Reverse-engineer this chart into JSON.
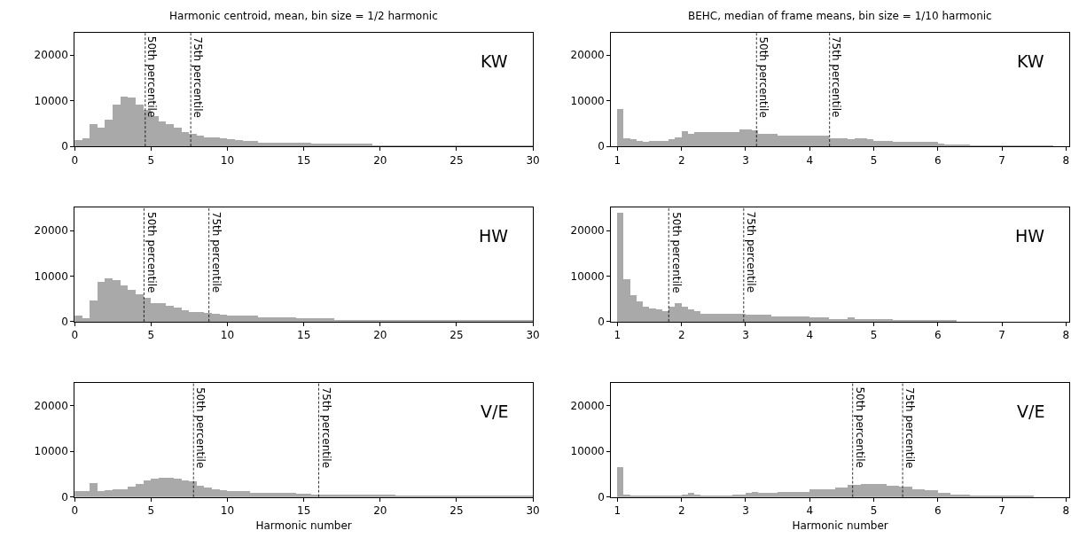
{
  "chart_data": [
    {
      "type": "histogram",
      "title": "Harmonic centroid, mean, bin size = 1/2 harmonic",
      "color": "#a9a9a9",
      "bins": [
        0,
        0.5,
        1,
        1.5,
        2,
        2.5,
        3,
        3.5,
        4,
        4.5,
        5,
        5.5,
        6,
        6.5,
        7,
        7.5,
        8,
        8.5,
        9,
        9.5,
        10,
        10.5,
        11,
        11.5,
        12,
        12.5,
        13,
        13.5,
        14,
        14.5,
        15,
        15.5,
        16,
        16.5,
        17,
        17.5,
        18,
        18.5,
        19,
        19.5,
        20,
        20.5,
        21,
        21.5,
        22,
        22.5,
        23,
        23.5,
        24,
        24.5,
        25,
        25.5,
        26,
        26.5,
        27,
        27.5,
        28,
        28.5,
        29,
        29.5,
        30
      ],
      "values": [
        1500,
        1800,
        4900,
        4200,
        6000,
        9300,
        11000,
        10800,
        9300,
        8100,
        6800,
        5500,
        4900,
        4200,
        3200,
        2900,
        2500,
        2100,
        2100,
        1800,
        1600,
        1400,
        1300,
        1200,
        900,
        900,
        900,
        900,
        900,
        900,
        900,
        600,
        600,
        600,
        600,
        600,
        600,
        600,
        600,
        150,
        150,
        150,
        150,
        150,
        150,
        150,
        150,
        150,
        150,
        150,
        150,
        150,
        150,
        150,
        150,
        150,
        150,
        150,
        150,
        150
      ],
      "xlim": [
        0,
        30
      ],
      "xticks": [
        0,
        5,
        10,
        15,
        20,
        25,
        30
      ],
      "ylim": [
        0,
        25000
      ],
      "yticks": [
        0,
        10000,
        20000
      ],
      "ref_lines": [
        {
          "axis": "x",
          "value": 4.62,
          "label": "50th percentile",
          "color": "#000000",
          "line_style": "dashed"
        },
        {
          "axis": "x",
          "value": 7.6,
          "label": "75th percentile",
          "color": "#000000",
          "line_style": "dashed"
        }
      ],
      "annotations": [
        "KW"
      ]
    },
    {
      "type": "histogram",
      "title": "BEHC, median of frame means, bin size = 1/10 harmonic",
      "color": "#a9a9a9",
      "bins": [
        1.0,
        1.1,
        1.2,
        1.3,
        1.4,
        1.5,
        1.6,
        1.7,
        1.8,
        1.9,
        2.0,
        2.1,
        2.2,
        2.3,
        2.4,
        2.5,
        2.6,
        2.7,
        2.8,
        2.9,
        3.0,
        3.1,
        3.2,
        3.3,
        3.4,
        3.5,
        3.6,
        3.7,
        3.8,
        3.9,
        4.0,
        4.1,
        4.2,
        4.3,
        4.4,
        4.5,
        4.6,
        4.7,
        4.8,
        4.9,
        5.0,
        5.1,
        5.2,
        5.3,
        5.4,
        5.5,
        5.6,
        5.7,
        5.8,
        5.9,
        6.0,
        6.1,
        6.2,
        6.3,
        6.4,
        6.5,
        6.6,
        6.7,
        6.8,
        6.9,
        7.0,
        7.1,
        7.2,
        7.3,
        7.4,
        7.5,
        7.6,
        7.7,
        7.8
      ],
      "values": [
        8200,
        1900,
        1600,
        1300,
        1100,
        1300,
        1300,
        1300,
        1600,
        2100,
        3400,
        2800,
        3200,
        3200,
        3200,
        3200,
        3200,
        3200,
        3200,
        3800,
        3800,
        3600,
        2800,
        2800,
        2800,
        2500,
        2500,
        2500,
        2500,
        2500,
        2500,
        2500,
        2500,
        1900,
        1900,
        1900,
        1600,
        1900,
        1900,
        1600,
        1300,
        1300,
        1300,
        1100,
        1100,
        1100,
        1100,
        1100,
        1100,
        1100,
        650,
        450,
        450,
        450,
        450,
        150,
        150,
        150,
        150,
        150,
        150,
        150,
        150,
        150,
        150,
        150,
        150,
        150
      ],
      "xlim": [
        0.9,
        8.05
      ],
      "xticks": [
        1,
        2,
        3,
        4,
        5,
        6,
        7,
        8
      ],
      "ylim": [
        0,
        25000
      ],
      "yticks": [
        0,
        10000,
        20000
      ],
      "ref_lines": [
        {
          "axis": "x",
          "value": 3.17,
          "label": "50th percentile",
          "color": "#000000",
          "line_style": "dashed"
        },
        {
          "axis": "x",
          "value": 4.31,
          "label": "75th percentile",
          "color": "#000000",
          "line_style": "dashed"
        }
      ],
      "annotations": [
        "KW"
      ]
    },
    {
      "type": "histogram",
      "color": "#a9a9a9",
      "bins": [
        0,
        0.5,
        1,
        1.5,
        2,
        2.5,
        3,
        3.5,
        4,
        4.5,
        5,
        5.5,
        6,
        6.5,
        7,
        7.5,
        8,
        8.5,
        9,
        9.5,
        10,
        10.5,
        11,
        11.5,
        12,
        12.5,
        13,
        13.5,
        14,
        14.5,
        15,
        15.5,
        16,
        16.5,
        17,
        17.5,
        18,
        18.5,
        19,
        19.5,
        20,
        20.5,
        21,
        21.5,
        22,
        22.5,
        23,
        23.5,
        24,
        24.5,
        25,
        25.5,
        26,
        26.5,
        27,
        27.5,
        28,
        28.5,
        29,
        29.5,
        30
      ],
      "values": [
        1300,
        650,
        4500,
        8600,
        9500,
        9000,
        7800,
        6900,
        6000,
        5200,
        3900,
        3900,
        3400,
        3100,
        2400,
        2100,
        2100,
        1900,
        1600,
        1500,
        1200,
        1200,
        1200,
        1200,
        900,
        900,
        900,
        900,
        900,
        600,
        600,
        600,
        600,
        600,
        200,
        200,
        200,
        200,
        200,
        200,
        200,
        200,
        200,
        200,
        200,
        200,
        200,
        200,
        200,
        200,
        200,
        200,
        200,
        200,
        200,
        200,
        200,
        200,
        200,
        200
      ],
      "xlim": [
        0,
        30
      ],
      "xticks": [
        0,
        5,
        10,
        15,
        20,
        25,
        30
      ],
      "ylim": [
        0,
        25000
      ],
      "yticks": [
        0,
        10000,
        20000
      ],
      "ref_lines": [
        {
          "axis": "x",
          "value": 4.54,
          "label": "50th percentile",
          "color": "#000000",
          "line_style": "dashed"
        },
        {
          "axis": "x",
          "value": 8.79,
          "label": "75th percentile",
          "color": "#000000",
          "line_style": "dashed"
        }
      ],
      "annotations": [
        "HW"
      ]
    },
    {
      "type": "histogram",
      "color": "#a9a9a9",
      "bins": [
        1.0,
        1.1,
        1.2,
        1.3,
        1.4,
        1.5,
        1.6,
        1.7,
        1.8,
        1.9,
        2.0,
        2.1,
        2.2,
        2.3,
        2.4,
        2.5,
        2.6,
        2.7,
        2.8,
        2.9,
        3.0,
        3.1,
        3.2,
        3.3,
        3.4,
        3.5,
        3.6,
        3.7,
        3.8,
        3.9,
        4.0,
        4.1,
        4.2,
        4.3,
        4.4,
        4.5,
        4.6,
        4.7,
        4.8,
        4.9,
        5.0,
        5.1,
        5.2,
        5.3,
        5.4,
        5.5,
        5.6,
        5.7,
        5.8,
        5.9,
        6.0,
        6.1,
        6.2,
        6.3
      ],
      "values": [
        23900,
        9200,
        5800,
        4400,
        3200,
        2900,
        2600,
        2300,
        3200,
        3900,
        3200,
        2600,
        2300,
        1600,
        1600,
        1600,
        1600,
        1600,
        1600,
        1600,
        1400,
        1400,
        1400,
        1400,
        1000,
        1000,
        1000,
        1000,
        1000,
        1000,
        800,
        800,
        800,
        500,
        500,
        500,
        800,
        450,
        450,
        450,
        450,
        450,
        450,
        130,
        130,
        130,
        130,
        130,
        130,
        130,
        130,
        130,
        130
      ],
      "xlim": [
        0.9,
        8.05
      ],
      "xticks": [
        1,
        2,
        3,
        4,
        5,
        6,
        7,
        8
      ],
      "ylim": [
        0,
        25000
      ],
      "yticks": [
        0,
        10000,
        20000
      ],
      "ref_lines": [
        {
          "axis": "x",
          "value": 1.8,
          "label": "50th percentile",
          "color": "#000000",
          "line_style": "dashed"
        },
        {
          "axis": "x",
          "value": 2.97,
          "label": "75th percentile",
          "color": "#000000",
          "line_style": "dashed"
        }
      ],
      "annotations": [
        "HW"
      ]
    },
    {
      "type": "histogram",
      "xlabel": "Harmonic number",
      "color": "#a9a9a9",
      "bins": [
        0,
        0.5,
        1,
        1.5,
        2,
        2.5,
        3,
        3.5,
        4,
        4.5,
        5,
        5.5,
        6,
        6.5,
        7,
        7.5,
        8,
        8.5,
        9,
        9.5,
        10,
        10.5,
        11,
        11.5,
        12,
        12.5,
        13,
        13.5,
        14,
        14.5,
        15,
        15.5,
        16,
        16.5,
        17,
        17.5,
        18,
        18.5,
        19,
        19.5,
        20,
        20.5,
        21,
        21.5,
        22,
        22.5,
        23,
        23.5,
        24,
        24.5,
        25,
        25.5,
        26,
        26.5,
        27,
        27.5,
        28,
        28.5,
        29,
        29.5,
        30
      ],
      "values": [
        1200,
        1200,
        3100,
        1200,
        1500,
        1750,
        1750,
        2300,
        2900,
        3600,
        3900,
        4200,
        4200,
        4000,
        3700,
        3400,
        2400,
        2100,
        1750,
        1500,
        1200,
        1200,
        1200,
        900,
        900,
        900,
        900,
        900,
        900,
        600,
        600,
        500,
        500,
        500,
        500,
        500,
        500,
        500,
        500,
        500,
        500,
        500,
        130,
        130,
        130,
        130,
        130,
        130,
        130,
        130,
        130,
        130,
        130,
        130,
        130,
        130,
        130,
        130,
        130,
        130
      ],
      "xlim": [
        0,
        30
      ],
      "xticks": [
        0,
        5,
        10,
        15,
        20,
        25,
        30
      ],
      "ylim": [
        0,
        25000
      ],
      "yticks": [
        0,
        10000,
        20000
      ],
      "ref_lines": [
        {
          "axis": "x",
          "value": 7.78,
          "label": "50th percentile",
          "color": "#000000",
          "line_style": "dashed"
        },
        {
          "axis": "x",
          "value": 15.98,
          "label": "75th percentile",
          "color": "#000000",
          "line_style": "dashed"
        }
      ],
      "annotations": [
        "V/E"
      ]
    },
    {
      "type": "histogram",
      "xlabel": "Harmonic number",
      "color": "#a9a9a9",
      "bins": [
        1.0,
        1.1,
        1.2,
        1.3,
        1.4,
        1.5,
        1.6,
        1.7,
        1.8,
        1.9,
        2.0,
        2.1,
        2.2,
        2.3,
        2.4,
        2.5,
        2.6,
        2.7,
        2.8,
        2.9,
        3.0,
        3.1,
        3.2,
        3.3,
        3.4,
        3.5,
        3.6,
        3.7,
        3.8,
        3.9,
        4.0,
        4.1,
        4.2,
        4.3,
        4.4,
        4.5,
        4.6,
        4.7,
        4.8,
        4.9,
        5.0,
        5.1,
        5.2,
        5.3,
        5.4,
        5.5,
        5.6,
        5.7,
        5.8,
        5.9,
        6.0,
        6.1,
        6.2,
        6.3,
        6.4,
        6.5,
        6.6,
        6.7,
        6.8,
        6.9,
        7.0,
        7.1,
        7.2,
        7.3,
        7.4,
        7.5
      ],
      "values": [
        6500,
        450,
        130,
        130,
        130,
        130,
        130,
        130,
        130,
        130,
        500,
        800,
        450,
        200,
        200,
        200,
        200,
        200,
        450,
        450,
        800,
        1100,
        800,
        800,
        800,
        1100,
        1100,
        1100,
        1100,
        1100,
        1600,
        1750,
        1750,
        1750,
        2100,
        2100,
        2600,
        2600,
        2900,
        2900,
        2800,
        2800,
        2500,
        2500,
        2300,
        2300,
        1750,
        1750,
        1400,
        1400,
        800,
        800,
        450,
        450,
        450,
        200,
        200,
        200,
        200,
        200,
        130,
        130,
        130,
        130,
        130
      ],
      "xlim": [
        0.9,
        8.05
      ],
      "xticks": [
        1,
        2,
        3,
        4,
        5,
        6,
        7,
        8
      ],
      "ylim": [
        0,
        25000
      ],
      "yticks": [
        0,
        10000,
        20000
      ],
      "ref_lines": [
        {
          "axis": "x",
          "value": 4.67,
          "label": "50th percentile",
          "color": "#000000",
          "line_style": "dashed"
        },
        {
          "axis": "x",
          "value": 5.45,
          "label": "75th percentile",
          "color": "#000000",
          "line_style": "dashed"
        }
      ],
      "annotations": [
        "V/E"
      ]
    }
  ]
}
